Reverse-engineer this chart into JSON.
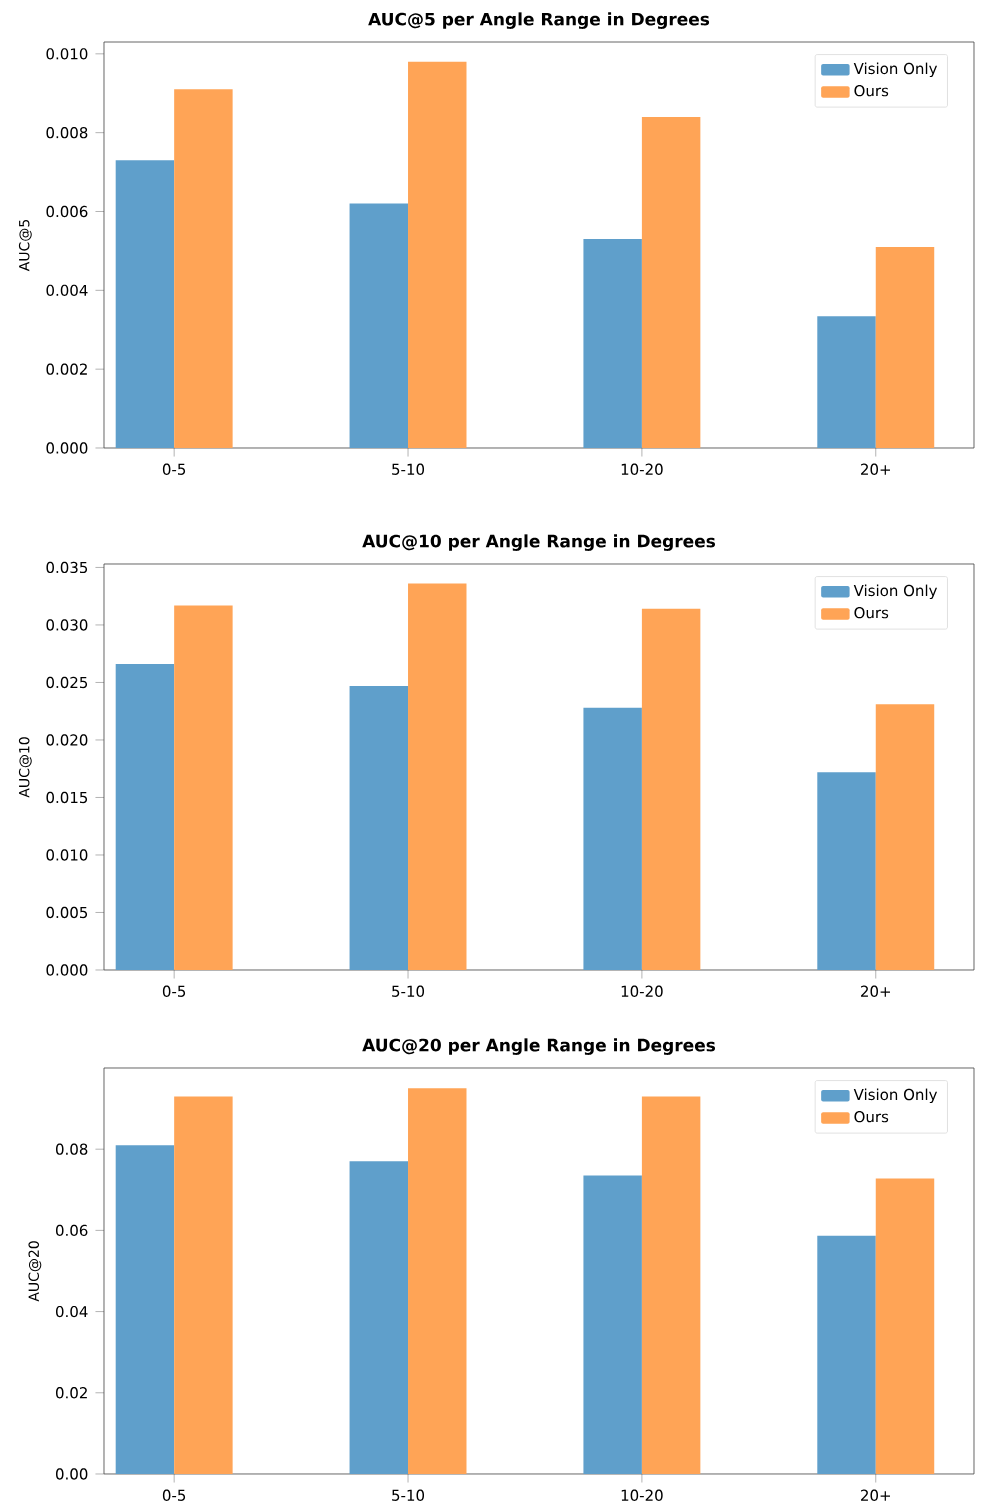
{
  "chart_data": [
    {
      "type": "bar",
      "title": "AUC@5 per Angle Range in Degrees",
      "ylabel": "AUC@5",
      "categories": [
        "0-5",
        "5-10",
        "10-20",
        "20+"
      ],
      "series": [
        {
          "name": "Vision Only",
          "color": "#5f9fcb",
          "values": [
            0.0073,
            0.0062,
            0.0053,
            0.00334
          ]
        },
        {
          "name": "Ours",
          "color": "#ffa456",
          "values": [
            0.0091,
            0.0098,
            0.0084,
            0.0051
          ]
        }
      ],
      "ylim": [
        0,
        0.0103
      ],
      "yticks": [
        {
          "value": 0,
          "label": "0.000"
        },
        {
          "value": 0.002,
          "label": "0.002"
        },
        {
          "value": 0.004,
          "label": "0.004"
        },
        {
          "value": 0.006,
          "label": "0.006"
        },
        {
          "value": 0.008,
          "label": "0.008"
        },
        {
          "value": 0.01,
          "label": "0.010"
        }
      ],
      "legend": "top right"
    },
    {
      "type": "bar",
      "title": "AUC@10 per Angle Range in Degrees",
      "ylabel": "AUC@10",
      "categories": [
        "0-5",
        "5-10",
        "10-20",
        "20+"
      ],
      "series": [
        {
          "name": "Vision Only",
          "color": "#5f9fcb",
          "values": [
            0.0266,
            0.0247,
            0.0228,
            0.0172
          ]
        },
        {
          "name": "Ours",
          "color": "#ffa456",
          "values": [
            0.0317,
            0.0336,
            0.0314,
            0.0231
          ]
        }
      ],
      "ylim": [
        0,
        0.0353
      ],
      "yticks": [
        {
          "value": 0,
          "label": "0.000"
        },
        {
          "value": 0.005,
          "label": "0.005"
        },
        {
          "value": 0.01,
          "label": "0.010"
        },
        {
          "value": 0.015,
          "label": "0.015"
        },
        {
          "value": 0.02,
          "label": "0.020"
        },
        {
          "value": 0.025,
          "label": "0.025"
        },
        {
          "value": 0.03,
          "label": "0.030"
        },
        {
          "value": 0.035,
          "label": "0.035"
        }
      ],
      "legend": "top right"
    },
    {
      "type": "bar",
      "title": "AUC@20 per Angle Range in Degrees",
      "ylabel": "AUC@20",
      "categories": [
        "0-5",
        "5-10",
        "10-20",
        "20+"
      ],
      "series": [
        {
          "name": "Vision Only",
          "color": "#5f9fcb",
          "values": [
            0.081,
            0.077,
            0.0735,
            0.0587
          ]
        },
        {
          "name": "Ours",
          "color": "#ffa456",
          "values": [
            0.093,
            0.095,
            0.093,
            0.0728
          ]
        }
      ],
      "ylim": [
        0,
        0.1
      ],
      "yticks": [
        {
          "value": 0,
          "label": "0.00"
        },
        {
          "value": 0.02,
          "label": "0.02"
        },
        {
          "value": 0.04,
          "label": "0.04"
        },
        {
          "value": 0.06,
          "label": "0.06"
        },
        {
          "value": 0.08,
          "label": "0.08"
        }
      ],
      "legend": "top right"
    }
  ]
}
